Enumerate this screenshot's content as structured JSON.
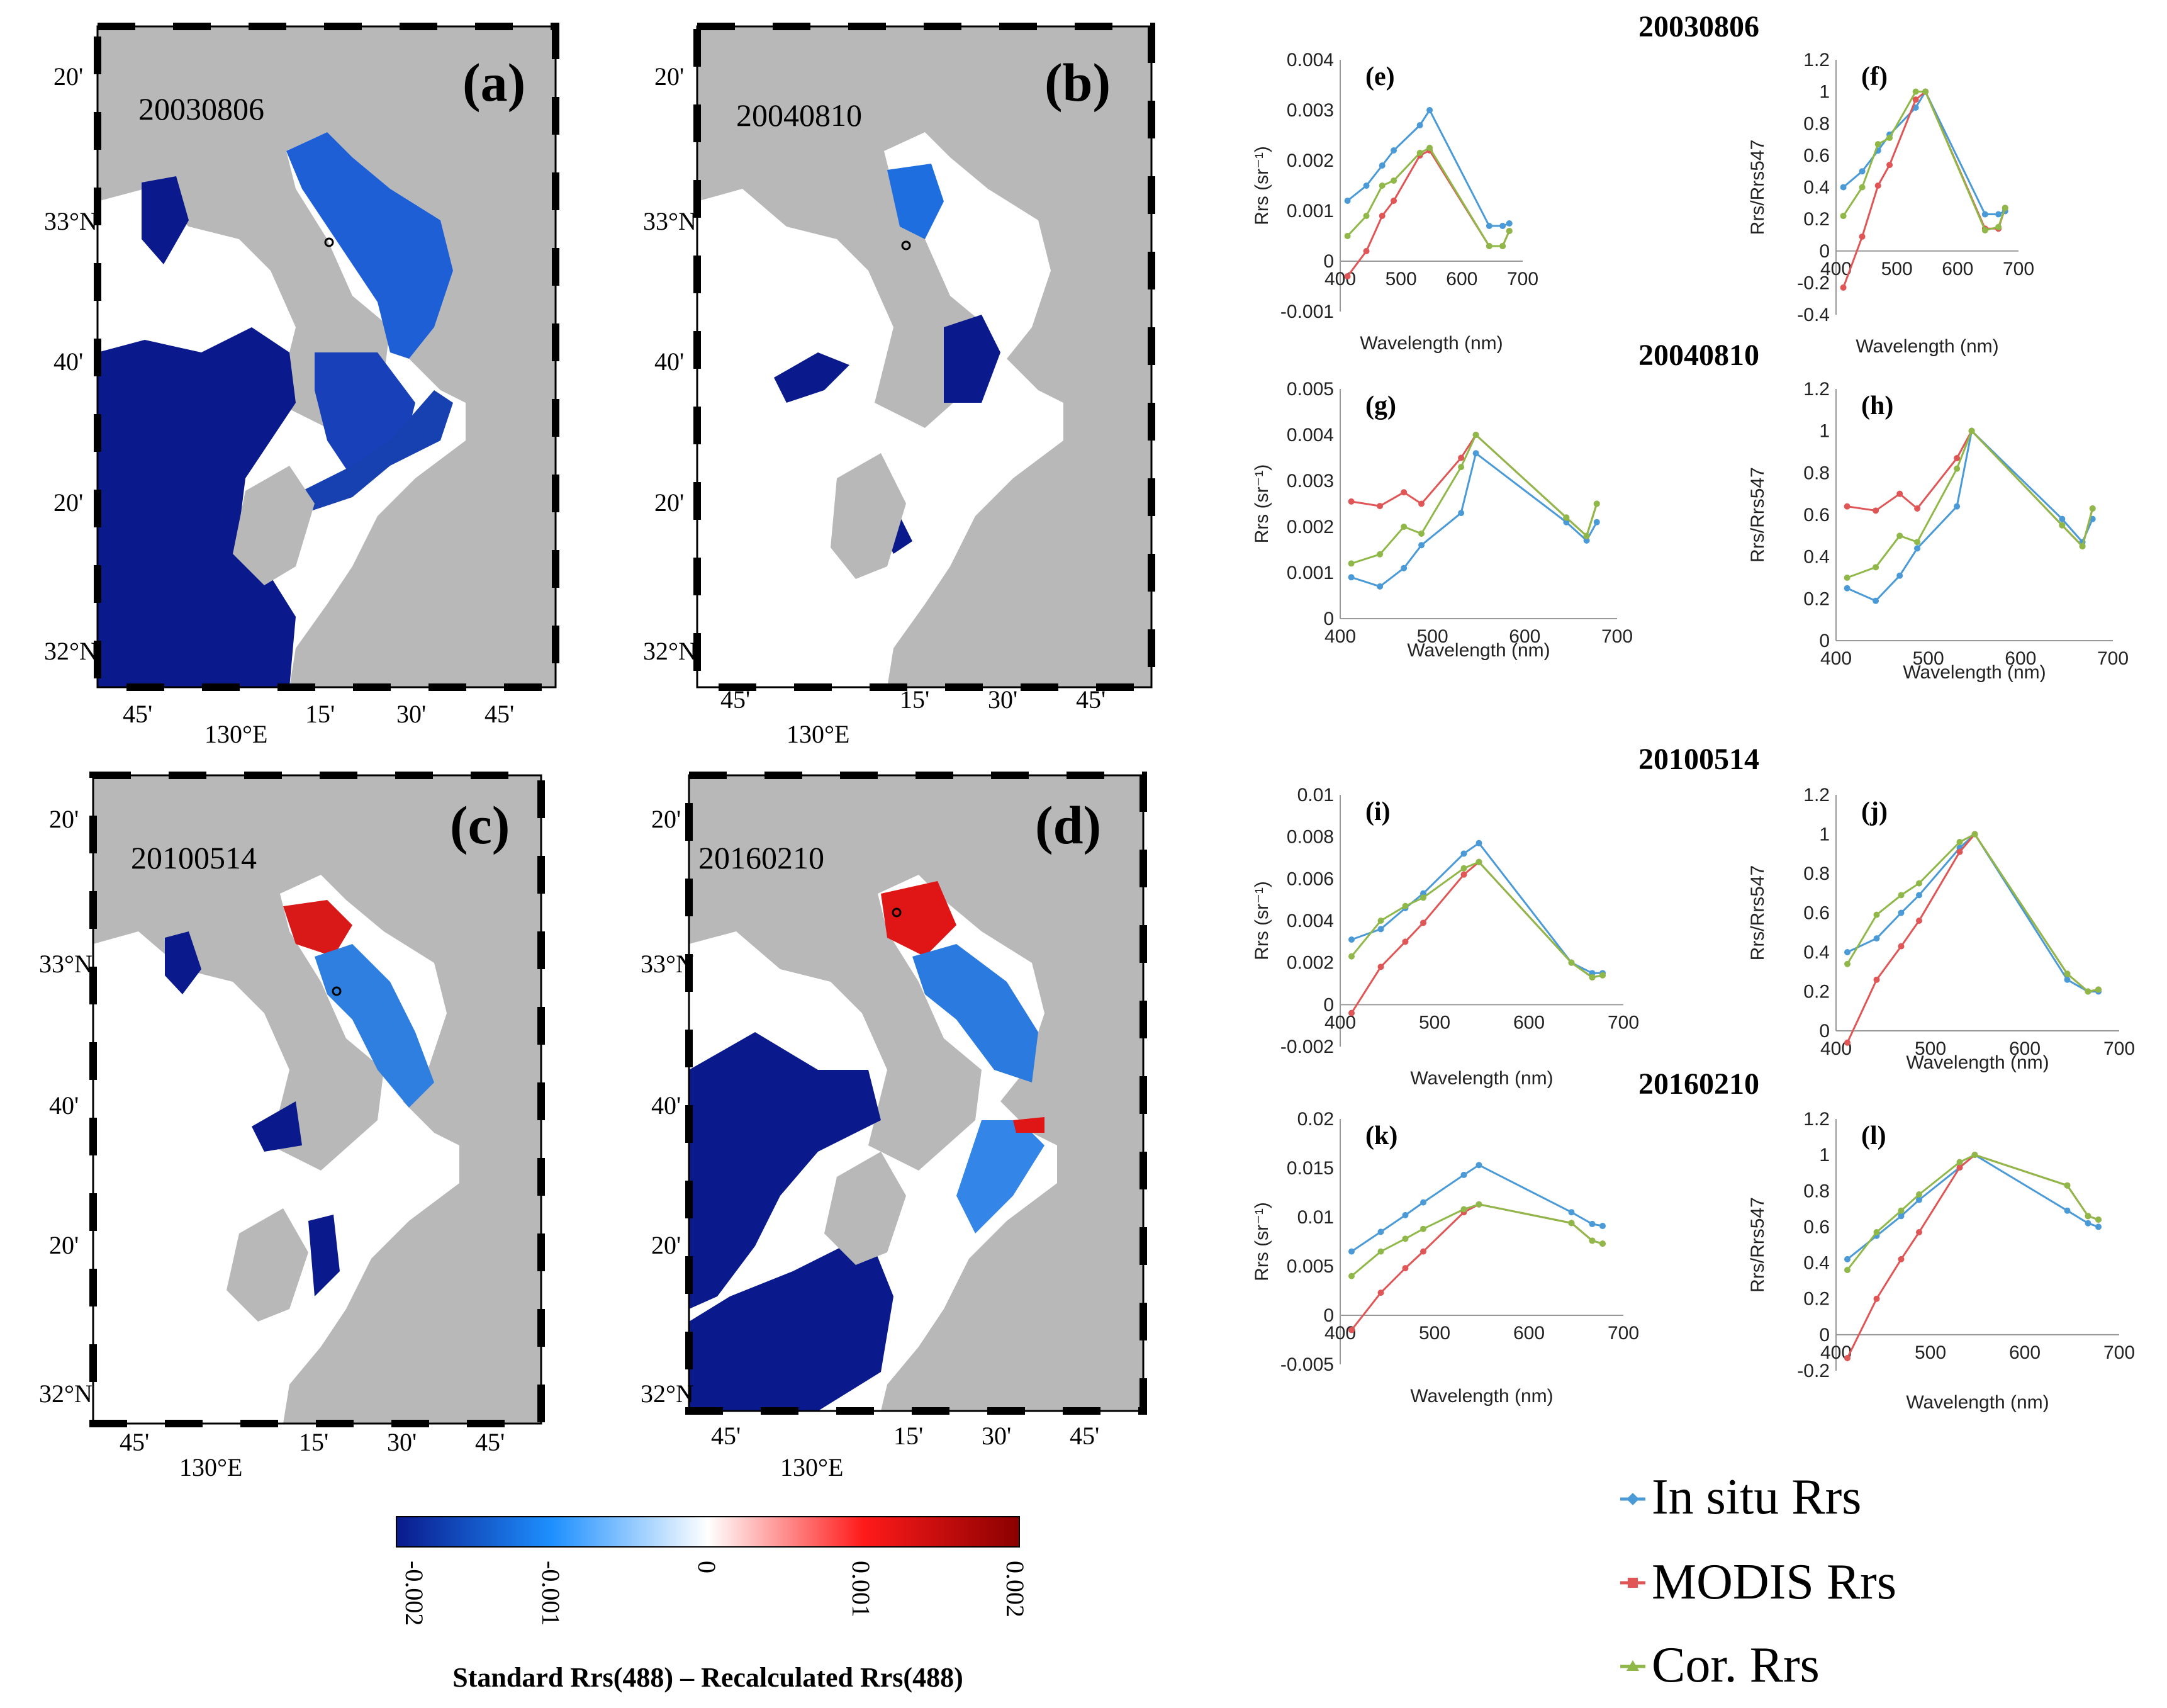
{
  "maps": [
    {
      "label": "(a)",
      "date": "20030806"
    },
    {
      "label": "(b)",
      "date": "20040810"
    },
    {
      "label": "(c)",
      "date": "20100514"
    },
    {
      "label": "(d)",
      "date": "20160210"
    }
  ],
  "map_axes": {
    "lat_ticks": [
      "20'",
      "33°N",
      "40'",
      "20'",
      "32°N"
    ],
    "lon_ticks": [
      "45'",
      "130°E",
      "15'",
      "30'",
      "45'"
    ]
  },
  "colorbar": {
    "ticks": [
      "-0.002",
      "-0.001",
      "0",
      "0.001",
      "0.002"
    ],
    "title": "Standard Rrs(488) – Recalculated Rrs(488)",
    "colors": {
      "neg_max": "#0a1a8c",
      "neg_mid": "#1e90ff",
      "zero": "#ffffff",
      "pos_mid": "#ff1a1a",
      "pos_max": "#8b0000"
    }
  },
  "date_headers": [
    "20030806",
    "20040810",
    "20100514",
    "20160210"
  ],
  "legend": {
    "items": [
      {
        "name": "In situ Rrs",
        "color": "#4a9ad8"
      },
      {
        "name": "MODIS Rrs",
        "color": "#e05555"
      },
      {
        "name": "Cor. Rrs",
        "color": "#8fb848"
      }
    ]
  },
  "chart_data": [
    {
      "id": "e",
      "label": "(e)",
      "type": "line",
      "date": "20030806",
      "ylabel": "Rrs (sr⁻¹)",
      "xlabel": "Wavelength (nm)",
      "xlim": [
        400,
        700
      ],
      "xticks": [
        "400",
        "500",
        "600",
        "700"
      ],
      "ylim": [
        -0.001,
        0.004
      ],
      "yticks": [
        "-0.001",
        "0",
        "0.001",
        "0.002",
        "0.003",
        "0.004"
      ],
      "x": [
        412,
        443,
        469,
        488,
        531,
        547,
        645,
        667,
        678
      ],
      "series": [
        {
          "name": "In situ Rrs",
          "values": [
            0.0012,
            0.0015,
            0.0019,
            0.0022,
            0.0027,
            0.003,
            0.0007,
            0.0007,
            0.00075
          ]
        },
        {
          "name": "MODIS Rrs",
          "values": [
            -0.0003,
            0.0002,
            0.0009,
            0.0012,
            0.0021,
            0.0022,
            0.0003,
            0.0003,
            0.0006
          ]
        },
        {
          "name": "Cor. Rrs",
          "values": [
            0.0005,
            0.0009,
            0.0015,
            0.0016,
            0.00215,
            0.00225,
            0.0003,
            0.0003,
            0.0006
          ]
        }
      ]
    },
    {
      "id": "f",
      "label": "(f)",
      "type": "line",
      "date": "20030806",
      "ylabel": "Rrs/Rrs547",
      "xlabel": "Wavelength (nm)",
      "xlim": [
        400,
        700
      ],
      "xticks": [
        "400",
        "500",
        "600",
        "700"
      ],
      "ylim": [
        -0.4,
        1.2
      ],
      "yticks": [
        "-0.4",
        "-0.2",
        "0",
        "0.2",
        "0.4",
        "0.6",
        "0.8",
        "1",
        "1.2"
      ],
      "x": [
        412,
        443,
        469,
        488,
        531,
        547,
        645,
        667,
        678
      ],
      "series": [
        {
          "name": "In situ Rrs",
          "values": [
            0.4,
            0.5,
            0.63,
            0.73,
            0.9,
            1.0,
            0.23,
            0.23,
            0.25
          ]
        },
        {
          "name": "MODIS Rrs",
          "values": [
            -0.23,
            0.09,
            0.41,
            0.54,
            0.95,
            1.0,
            0.14,
            0.14,
            0.27
          ]
        },
        {
          "name": "Cor. Rrs",
          "values": [
            0.22,
            0.4,
            0.67,
            0.71,
            1.0,
            1.0,
            0.13,
            0.15,
            0.27
          ]
        }
      ]
    },
    {
      "id": "g",
      "label": "(g)",
      "type": "line",
      "date": "20040810",
      "ylabel": "Rrs (sr⁻¹)",
      "xlabel": "Wavelength (nm)",
      "xlim": [
        400,
        700
      ],
      "xticks": [
        "400",
        "500",
        "600",
        "700"
      ],
      "ylim": [
        0,
        0.005
      ],
      "yticks": [
        "0",
        "0.001",
        "0.002",
        "0.003",
        "0.004",
        "0.005"
      ],
      "x": [
        412,
        443,
        469,
        488,
        531,
        547,
        645,
        667,
        678
      ],
      "series": [
        {
          "name": "In situ Rrs",
          "values": [
            0.0009,
            0.0007,
            0.0011,
            0.0016,
            0.0023,
            0.0036,
            0.0021,
            0.0017,
            0.0021
          ]
        },
        {
          "name": "MODIS Rrs",
          "values": [
            0.00255,
            0.00245,
            0.00275,
            0.0025,
            0.0035,
            0.004,
            0.0022,
            0.0018,
            0.0025
          ]
        },
        {
          "name": "Cor. Rrs",
          "values": [
            0.0012,
            0.0014,
            0.002,
            0.00185,
            0.0033,
            0.004,
            0.0022,
            0.0018,
            0.0025
          ]
        }
      ]
    },
    {
      "id": "h",
      "label": "(h)",
      "type": "line",
      "date": "20040810",
      "ylabel": "Rrs/Rrs547",
      "xlabel": "Wavelength (nm)",
      "xlim": [
        400,
        700
      ],
      "xticks": [
        "400",
        "500",
        "600",
        "700"
      ],
      "ylim": [
        0,
        1.2
      ],
      "yticks": [
        "0",
        "0.2",
        "0.4",
        "0.6",
        "0.8",
        "1",
        "1.2"
      ],
      "x": [
        412,
        443,
        469,
        488,
        531,
        547,
        645,
        667,
        678
      ],
      "series": [
        {
          "name": "In situ Rrs",
          "values": [
            0.25,
            0.19,
            0.31,
            0.44,
            0.64,
            1.0,
            0.58,
            0.47,
            0.58
          ]
        },
        {
          "name": "MODIS Rrs",
          "values": [
            0.64,
            0.62,
            0.7,
            0.63,
            0.87,
            1.0,
            0.55,
            0.45,
            0.63
          ]
        },
        {
          "name": "Cor. Rrs",
          "values": [
            0.3,
            0.35,
            0.5,
            0.47,
            0.82,
            1.0,
            0.55,
            0.45,
            0.63
          ]
        }
      ]
    },
    {
      "id": "i",
      "label": "(i)",
      "type": "line",
      "date": "20100514",
      "ylabel": "Rrs (sr⁻¹)",
      "xlabel": "Wavelength (nm)",
      "xlim": [
        400,
        700
      ],
      "xticks": [
        "400",
        "500",
        "600",
        "700"
      ],
      "ylim": [
        -0.002,
        0.01
      ],
      "yticks": [
        "-0.002",
        "0",
        "0.002",
        "0.004",
        "0.006",
        "0.008",
        "0.01"
      ],
      "x": [
        412,
        443,
        469,
        488,
        531,
        547,
        645,
        667,
        678
      ],
      "series": [
        {
          "name": "In situ Rrs",
          "values": [
            0.0031,
            0.0036,
            0.0046,
            0.0053,
            0.0072,
            0.0077,
            0.002,
            0.0015,
            0.0015
          ]
        },
        {
          "name": "MODIS Rrs",
          "values": [
            -0.0004,
            0.0018,
            0.003,
            0.0039,
            0.0062,
            0.0068,
            0.002,
            0.0013,
            0.0014
          ]
        },
        {
          "name": "Cor. Rrs",
          "values": [
            0.0023,
            0.004,
            0.0047,
            0.0051,
            0.0065,
            0.0068,
            0.002,
            0.0013,
            0.0014
          ]
        }
      ]
    },
    {
      "id": "j",
      "label": "(j)",
      "type": "line",
      "date": "20100514",
      "ylabel": "Rrs/Rrs547",
      "xlabel": "Wavelength (nm)",
      "xlim": [
        400,
        700
      ],
      "xticks": [
        "400",
        "500",
        "600",
        "700"
      ],
      "ylim": [
        0,
        1.2
      ],
      "yticks": [
        "0",
        "0.2",
        "0.4",
        "0.6",
        "0.8",
        "1",
        "1.2"
      ],
      "x": [
        412,
        443,
        469,
        488,
        531,
        547,
        645,
        667,
        678
      ],
      "series": [
        {
          "name": "In situ Rrs",
          "values": [
            0.4,
            0.47,
            0.6,
            0.69,
            0.93,
            1.0,
            0.26,
            0.2,
            0.2
          ]
        },
        {
          "name": "MODIS Rrs",
          "values": [
            -0.06,
            0.26,
            0.43,
            0.56,
            0.91,
            1.0,
            0.29,
            0.2,
            0.21
          ]
        },
        {
          "name": "Cor. Rrs",
          "values": [
            0.34,
            0.59,
            0.69,
            0.75,
            0.96,
            1.0,
            0.29,
            0.2,
            0.21
          ]
        }
      ]
    },
    {
      "id": "k",
      "label": "(k)",
      "type": "line",
      "date": "20160210",
      "ylabel": "Rrs (sr⁻¹)",
      "xlabel": "Wavelength (nm)",
      "xlim": [
        400,
        700
      ],
      "xticks": [
        "400",
        "500",
        "600",
        "700"
      ],
      "ylim": [
        -0.005,
        0.02
      ],
      "yticks": [
        "-0.005",
        "0",
        "0.005",
        "0.01",
        "0.015",
        "0.02"
      ],
      "x": [
        412,
        443,
        469,
        488,
        531,
        547,
        645,
        667,
        678
      ],
      "series": [
        {
          "name": "In situ Rrs",
          "values": [
            0.0065,
            0.0085,
            0.0102,
            0.0115,
            0.0143,
            0.0153,
            0.0105,
            0.0093,
            0.0091
          ]
        },
        {
          "name": "MODIS Rrs",
          "values": [
            -0.0015,
            0.0023,
            0.0048,
            0.0065,
            0.0105,
            0.0113,
            0.0094,
            0.0076,
            0.0073
          ]
        },
        {
          "name": "Cor. Rrs",
          "values": [
            0.004,
            0.0065,
            0.0078,
            0.0088,
            0.0108,
            0.0113,
            0.0094,
            0.0076,
            0.0073
          ]
        }
      ]
    },
    {
      "id": "l",
      "label": "(l)",
      "type": "line",
      "date": "20160210",
      "ylabel": "Rrs/Rrs547",
      "xlabel": "Wavelength (nm)",
      "xlim": [
        400,
        700
      ],
      "xticks": [
        "400",
        "500",
        "600",
        "700"
      ],
      "ylim": [
        -0.2,
        1.2
      ],
      "yticks": [
        "-0.2",
        "0",
        "0.2",
        "0.4",
        "0.6",
        "0.8",
        "1",
        "1.2"
      ],
      "x": [
        412,
        443,
        469,
        488,
        531,
        547,
        645,
        667,
        678
      ],
      "series": [
        {
          "name": "In situ Rrs",
          "values": [
            0.42,
            0.55,
            0.66,
            0.75,
            0.93,
            1.0,
            0.69,
            0.62,
            0.6
          ]
        },
        {
          "name": "MODIS Rrs",
          "values": [
            -0.13,
            0.2,
            0.42,
            0.57,
            0.93,
            1.0,
            0.83,
            0.66,
            0.64
          ]
        },
        {
          "name": "Cor. Rrs",
          "values": [
            0.36,
            0.57,
            0.69,
            0.78,
            0.96,
            1.0,
            0.83,
            0.66,
            0.64
          ]
        }
      ]
    }
  ]
}
